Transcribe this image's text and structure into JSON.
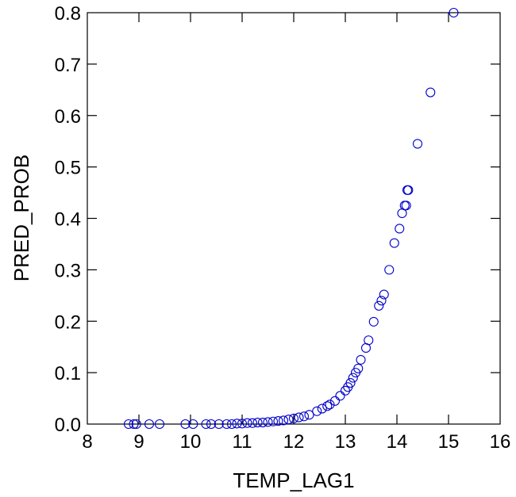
{
  "chart_data": {
    "type": "scatter",
    "title": "",
    "xlabel": "TEMP_LAG1",
    "ylabel": "PRED_PROB",
    "xlim": [
      8,
      16
    ],
    "ylim": [
      0,
      0.8
    ],
    "xticks": [
      8,
      9,
      10,
      11,
      12,
      13,
      14,
      15,
      16
    ],
    "yticks": [
      0.0,
      0.1,
      0.2,
      0.3,
      0.4,
      0.5,
      0.6,
      0.7,
      0.8
    ],
    "ytick_labels": [
      "0.0",
      "0.1",
      "0.2",
      "0.3",
      "0.4",
      "0.5",
      "0.6",
      "0.7",
      "0.8"
    ],
    "grid": false,
    "marker": "open-circle",
    "marker_color": "#0000cc",
    "points": [
      [
        8.8,
        0.0
      ],
      [
        8.9,
        0.0
      ],
      [
        8.95,
        0.0
      ],
      [
        9.2,
        0.0
      ],
      [
        9.4,
        0.0
      ],
      [
        9.9,
        0.0
      ],
      [
        10.05,
        0.0
      ],
      [
        10.3,
        0.0
      ],
      [
        10.4,
        0.0
      ],
      [
        10.55,
        0.0
      ],
      [
        10.7,
        0.0
      ],
      [
        10.8,
        0.0
      ],
      [
        10.9,
        0.001
      ],
      [
        11.0,
        0.001
      ],
      [
        11.1,
        0.002
      ],
      [
        11.2,
        0.002
      ],
      [
        11.3,
        0.003
      ],
      [
        11.4,
        0.003
      ],
      [
        11.5,
        0.004
      ],
      [
        11.6,
        0.005
      ],
      [
        11.7,
        0.006
      ],
      [
        11.8,
        0.007
      ],
      [
        11.9,
        0.009
      ],
      [
        12.0,
        0.011
      ],
      [
        12.1,
        0.013
      ],
      [
        12.2,
        0.015
      ],
      [
        12.3,
        0.018
      ],
      [
        12.45,
        0.025
      ],
      [
        12.55,
        0.03
      ],
      [
        12.65,
        0.035
      ],
      [
        12.7,
        0.038
      ],
      [
        12.8,
        0.045
      ],
      [
        12.9,
        0.055
      ],
      [
        13.0,
        0.065
      ],
      [
        13.05,
        0.072
      ],
      [
        13.1,
        0.08
      ],
      [
        13.15,
        0.09
      ],
      [
        13.2,
        0.1
      ],
      [
        13.25,
        0.108
      ],
      [
        13.3,
        0.125
      ],
      [
        13.4,
        0.148
      ],
      [
        13.45,
        0.163
      ],
      [
        13.55,
        0.199
      ],
      [
        13.65,
        0.23
      ],
      [
        13.7,
        0.24
      ],
      [
        13.75,
        0.252
      ],
      [
        13.85,
        0.3
      ],
      [
        13.95,
        0.352
      ],
      [
        14.05,
        0.38
      ],
      [
        14.1,
        0.41
      ],
      [
        14.15,
        0.425
      ],
      [
        14.18,
        0.425
      ],
      [
        14.2,
        0.455
      ],
      [
        14.22,
        0.455
      ],
      [
        14.4,
        0.545
      ],
      [
        14.65,
        0.645
      ],
      [
        15.1,
        0.8
      ]
    ]
  }
}
